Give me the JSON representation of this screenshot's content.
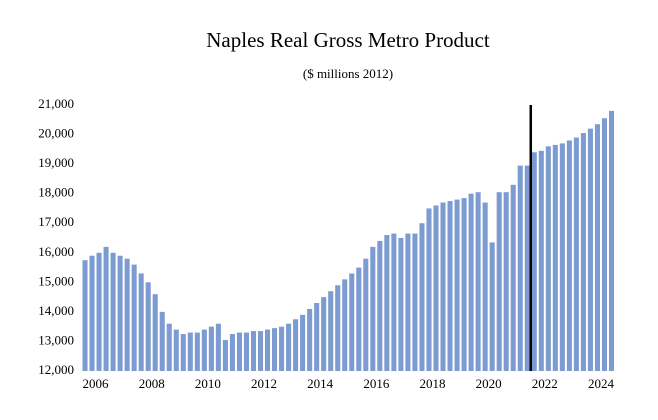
{
  "chart_data": {
    "type": "bar",
    "title": "Naples Real Gross Metro Product",
    "subtitle": "($ millions 2012)",
    "categories": [
      null,
      null,
      "2006",
      null,
      null,
      null,
      null,
      null,
      null,
      null,
      "2008",
      null,
      null,
      null,
      null,
      null,
      null,
      null,
      "2010",
      null,
      null,
      null,
      null,
      null,
      null,
      null,
      "2012",
      null,
      null,
      null,
      null,
      null,
      null,
      null,
      "2014",
      null,
      null,
      null,
      null,
      null,
      null,
      null,
      "2016",
      null,
      null,
      null,
      null,
      null,
      null,
      null,
      "2018",
      null,
      null,
      null,
      null,
      null,
      null,
      null,
      "2020",
      null,
      null,
      null,
      null,
      null,
      null,
      null,
      "2022",
      null,
      null,
      null,
      null,
      null,
      null,
      null,
      "2024",
      null
    ],
    "values": [
      15750,
      15900,
      16000,
      16200,
      16000,
      15900,
      15800,
      15600,
      15300,
      15000,
      14600,
      14000,
      13600,
      13400,
      13250,
      13300,
      13300,
      13400,
      13500,
      13600,
      13050,
      13250,
      13300,
      13300,
      13350,
      13350,
      13400,
      13450,
      13500,
      13600,
      13750,
      13900,
      14100,
      14300,
      14500,
      14700,
      14900,
      15100,
      15300,
      15500,
      15800,
      16200,
      16400,
      16600,
      16650,
      16500,
      16650,
      16650,
      17000,
      17500,
      17600,
      17700,
      17750,
      17800,
      17850,
      18000,
      18050,
      17700,
      16350,
      18050,
      18050,
      18300,
      18950,
      18950,
      19400,
      19450,
      19600,
      19650,
      19700,
      19800,
      19900,
      20050,
      20200,
      20350,
      20550,
      20800
    ],
    "color": "#7b9bd1",
    "ylim": [
      12000,
      21000
    ],
    "yticks": [
      {
        "value": 12000,
        "label": "12,000"
      },
      {
        "value": 13000,
        "label": "13,000"
      },
      {
        "value": 14000,
        "label": "14,000"
      },
      {
        "value": 15000,
        "label": "15,000"
      },
      {
        "value": 16000,
        "label": "16,000"
      },
      {
        "value": 17000,
        "label": "17,000"
      },
      {
        "value": 18000,
        "label": "18,000"
      },
      {
        "value": 19000,
        "label": "19,000"
      },
      {
        "value": 20000,
        "label": "20,000"
      },
      {
        "value": 21000,
        "label": "21,000"
      }
    ],
    "grid": false,
    "reference_line": {
      "index": 64,
      "color": "#000000"
    }
  }
}
